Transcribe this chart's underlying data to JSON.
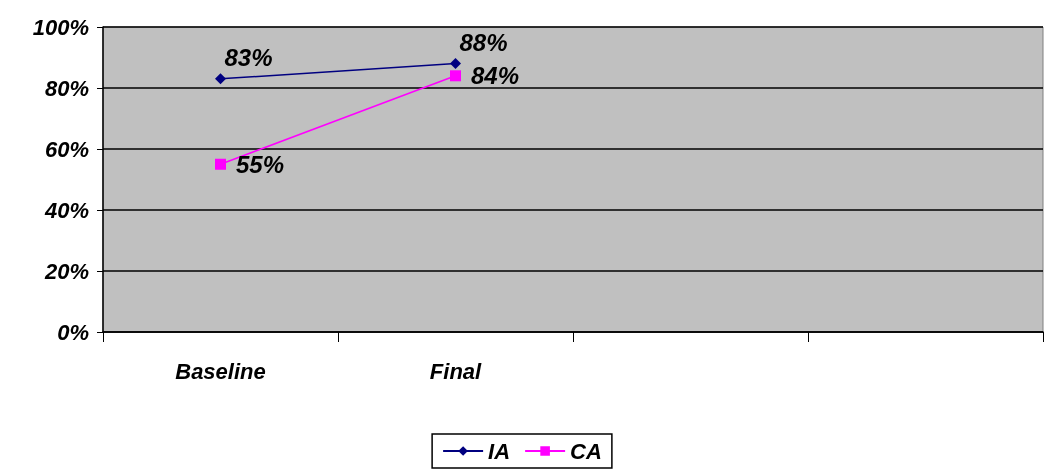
{
  "chart_data": {
    "type": "line",
    "categories": [
      "Baseline",
      "Final",
      null,
      null
    ],
    "series": [
      {
        "name": "IA",
        "color": "#000080",
        "marker": "diamond",
        "values": [
          83,
          88,
          null,
          null
        ],
        "value_labels": [
          "83%",
          "88%",
          null,
          null
        ]
      },
      {
        "name": "CA",
        "color": "#ff00ff",
        "marker": "square",
        "values": [
          55,
          84,
          null,
          null
        ],
        "value_labels": [
          "55%",
          "84%",
          null,
          null
        ]
      }
    ],
    "ylim": [
      0,
      100
    ],
    "yticks": [
      {
        "value": 0,
        "label": "0%"
      },
      {
        "value": 20,
        "label": "20%"
      },
      {
        "value": 40,
        "label": "40%"
      },
      {
        "value": 60,
        "label": "60%"
      },
      {
        "value": 80,
        "label": "80%"
      },
      {
        "value": 100,
        "label": "100%"
      }
    ],
    "grid": "y",
    "legend": "bottom",
    "line_style": "solid"
  }
}
